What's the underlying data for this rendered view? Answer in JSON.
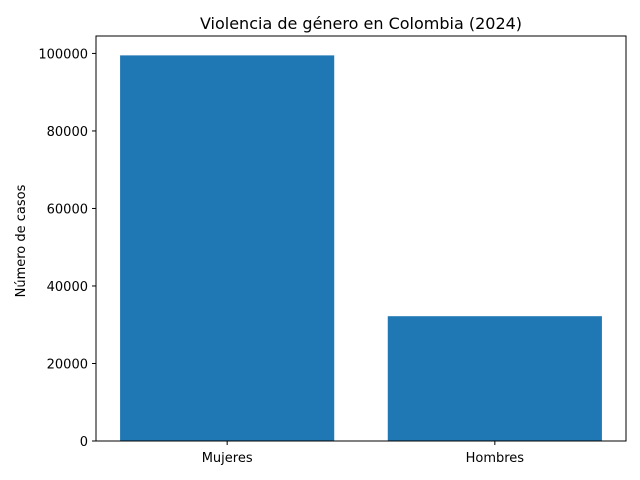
{
  "chart_data": {
    "type": "bar",
    "title": "Violencia de género en Colombia (2024)",
    "xlabel": "",
    "ylabel": "Número de casos",
    "categories": [
      "Mujeres",
      "Hombres"
    ],
    "values": [
      99500,
      32200
    ],
    "ylim": [
      0,
      104500
    ],
    "yticks": [
      0,
      20000,
      40000,
      60000,
      80000,
      100000
    ],
    "bar_color": "#1f77b4",
    "grid": false,
    "legend": "none"
  }
}
